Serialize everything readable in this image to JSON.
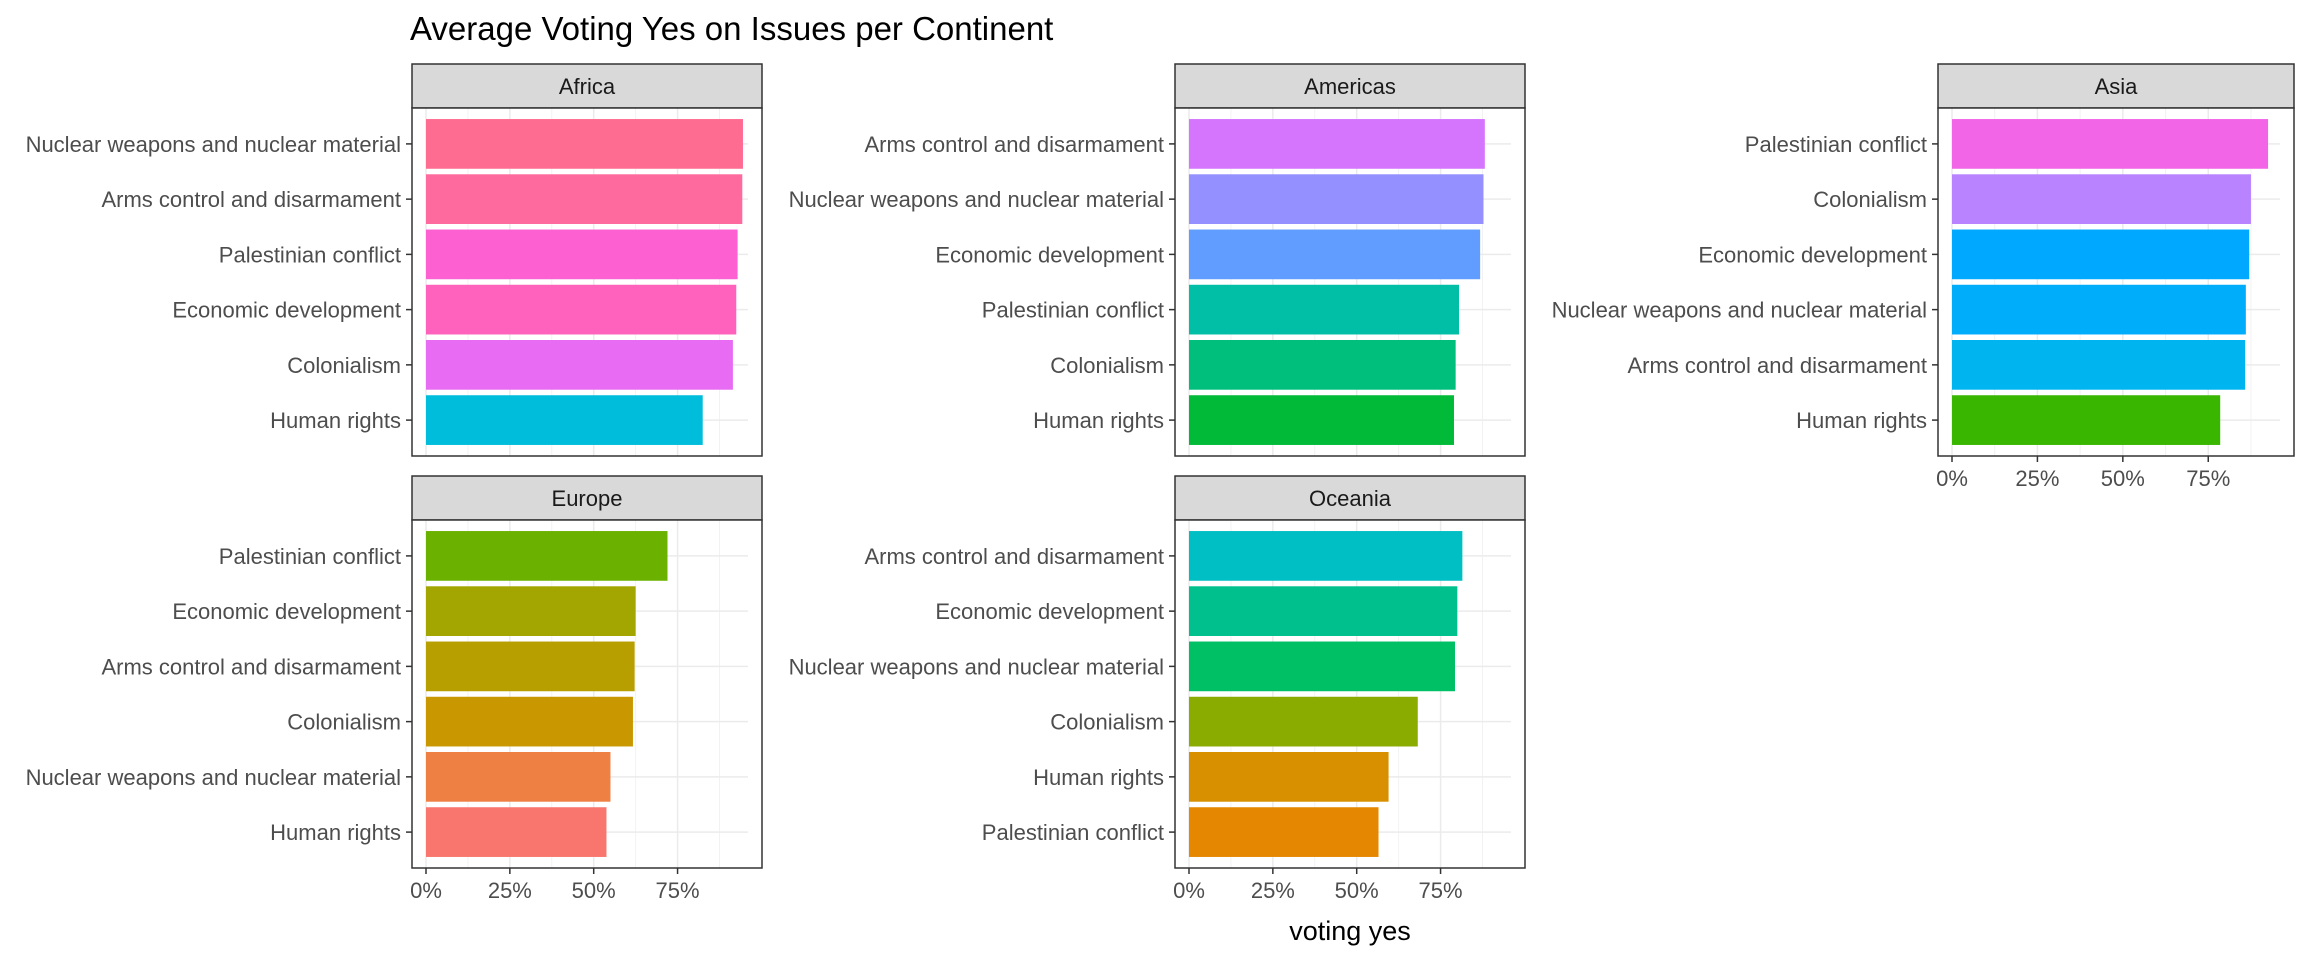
{
  "chart_data": {
    "type": "bar",
    "orientation": "horizontal",
    "title": "Average Voting Yes on Issues per Continent",
    "xlabel": "voting yes",
    "ylabel": "",
    "xlim": [
      0,
      1
    ],
    "x_ticks": [
      "0%",
      "25%",
      "50%",
      "75%"
    ],
    "x_tick_values": [
      0,
      0.25,
      0.5,
      0.75
    ],
    "grid": true,
    "legend": "none",
    "facets": [
      {
        "name": "Africa",
        "bars": [
          {
            "category": "Nuclear weapons and nuclear material",
            "value": 0.945,
            "color": "#FF6C91"
          },
          {
            "category": "Arms control and disarmament",
            "value": 0.943,
            "color": "#FF6A9E"
          },
          {
            "category": "Palestinian conflict",
            "value": 0.929,
            "color": "#FD61D1"
          },
          {
            "category": "Economic development",
            "value": 0.925,
            "color": "#FF62BC"
          },
          {
            "category": "Colonialism",
            "value": 0.915,
            "color": "#E76BF3"
          },
          {
            "category": "Human rights",
            "value": 0.825,
            "color": "#00BDDB"
          }
        ]
      },
      {
        "name": "Americas",
        "bars": [
          {
            "category": "Arms control and disarmament",
            "value": 0.882,
            "color": "#D575FE"
          },
          {
            "category": "Nuclear weapons and nuclear material",
            "value": 0.878,
            "color": "#9590FF"
          },
          {
            "category": "Economic development",
            "value": 0.868,
            "color": "#619CFF"
          },
          {
            "category": "Palestinian conflict",
            "value": 0.805,
            "color": "#00BFA6"
          },
          {
            "category": "Colonialism",
            "value": 0.795,
            "color": "#00BF7D"
          },
          {
            "category": "Human rights",
            "value": 0.79,
            "color": "#00BA38"
          }
        ]
      },
      {
        "name": "Asia",
        "bars": [
          {
            "category": "Palestinian conflict",
            "value": 0.925,
            "color": "#F265E7"
          },
          {
            "category": "Colonialism",
            "value": 0.875,
            "color": "#B983FF"
          },
          {
            "category": "Economic development",
            "value": 0.87,
            "color": "#00A9FF"
          },
          {
            "category": "Nuclear weapons and nuclear material",
            "value": 0.86,
            "color": "#00ADFA"
          },
          {
            "category": "Arms control and disarmament",
            "value": 0.858,
            "color": "#00B4EF"
          },
          {
            "category": "Human rights",
            "value": 0.785,
            "color": "#39B600"
          }
        ]
      },
      {
        "name": "Europe",
        "bars": [
          {
            "category": "Palestinian conflict",
            "value": 0.72,
            "color": "#6BB100"
          },
          {
            "category": "Economic development",
            "value": 0.625,
            "color": "#A3A500"
          },
          {
            "category": "Arms control and disarmament",
            "value": 0.622,
            "color": "#B79F00"
          },
          {
            "category": "Colonialism",
            "value": 0.617,
            "color": "#C99800"
          },
          {
            "category": "Nuclear weapons and nuclear material",
            "value": 0.55,
            "color": "#EE8044"
          },
          {
            "category": "Human rights",
            "value": 0.538,
            "color": "#F8766D"
          }
        ]
      },
      {
        "name": "Oceania",
        "bars": [
          {
            "category": "Arms control and disarmament",
            "value": 0.815,
            "color": "#00BFC4"
          },
          {
            "category": "Economic development",
            "value": 0.8,
            "color": "#00C08D"
          },
          {
            "category": "Nuclear weapons and nuclear material",
            "value": 0.793,
            "color": "#00C066"
          },
          {
            "category": "Colonialism",
            "value": 0.682,
            "color": "#8AAB00"
          },
          {
            "category": "Human rights",
            "value": 0.595,
            "color": "#D89000"
          },
          {
            "category": "Palestinian conflict",
            "value": 0.565,
            "color": "#E58700"
          }
        ]
      }
    ]
  }
}
